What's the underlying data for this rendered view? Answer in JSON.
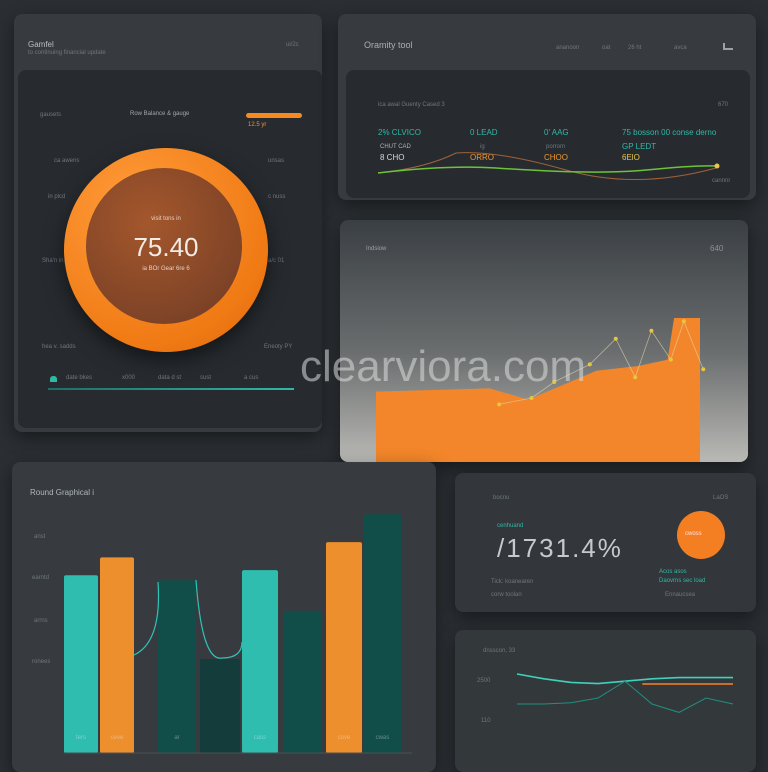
{
  "gauge_panel": {
    "title": "Gamfel",
    "subtitle": "to continuing financial update",
    "corner": "ui/2c",
    "header_left": "gausets",
    "header_mid": "Row Balance & gauge",
    "header_right": "12.5 yr",
    "side_left": [
      "ca awens",
      "in plcd",
      "Sha'n in atch",
      "hea v. sadds"
    ],
    "side_right": [
      "unsas",
      "c nuss",
      "a/c 01",
      "Eneoty PY"
    ],
    "gauge_value": "75.40",
    "gauge_label": "visit tons in",
    "gauge_sub": "ia BOr Gear 6re 6",
    "footer": [
      "date bkes",
      "x000",
      "data d st",
      "sust",
      "a cus"
    ],
    "accent": "#f68a1f"
  },
  "summary_panel": {
    "title": "Oramity tool",
    "tabs": [
      "ananoon",
      "oat",
      "26 ht",
      "avca"
    ],
    "caption": "ica awal Guenty Cased 3",
    "corner": "670",
    "stats": [
      {
        "top": "2% CLVICO",
        "label": "CHUT CAD",
        "value": "8 CHO"
      },
      {
        "top": "0 LEAD",
        "label": "ig",
        "value": "ORRO"
      },
      {
        "top": "0' AAG",
        "label": "porrom",
        "value": "CHOO"
      },
      {
        "top": "75 bosson 00 conse derno",
        "label": "GP LEDT",
        "value": "6ElO"
      }
    ],
    "footnote": "cannnr"
  },
  "area_panel": {
    "title": "Indsiow",
    "corner": "640"
  },
  "bar_panel": {
    "title": "Round Graphical i",
    "ticks": [
      "anst",
      "earntd",
      "arrns",
      "ronees"
    ],
    "bar_labels": [
      "ters",
      "ceve",
      "ar",
      "",
      "cass",
      "",
      "cove",
      "cwas"
    ]
  },
  "kpi_panel": {
    "title": "bocnu",
    "corner": "LaOS",
    "trend": "cenhuand",
    "value": "/1731.4%",
    "badge": "cwoss",
    "notes_left": [
      "Tick: koanearen",
      "corw toolan"
    ],
    "notes_right": [
      "Acos asos",
      "Daovrns sec load",
      "Ennaucsea"
    ]
  },
  "line_panel": {
    "title": "dnsscon, 33",
    "ticks": [
      "2500",
      "110"
    ]
  },
  "watermark": "clearviora.com",
  "chart_data": [
    {
      "type": "bar",
      "title": "Round Graphical i",
      "categories": [
        "1",
        "2",
        "3",
        "4",
        "5",
        "6",
        "7",
        "8"
      ],
      "values": [
        70,
        77,
        68,
        37,
        72,
        56,
        83,
        94
      ],
      "colors": [
        "#2ec4b6",
        "#f7932b",
        "#0f4f4a",
        "#123c3a",
        "#2ec4b6",
        "#0f4f4a",
        "#f7932b",
        "#0f4f4a"
      ]
    },
    {
      "type": "area",
      "title": "Indsiow",
      "area_values": [
        44,
        46,
        39,
        57,
        60,
        64,
        90,
        90
      ],
      "area_x": [
        0,
        35,
        47,
        68,
        81,
        90,
        92,
        100
      ],
      "line_x": [
        38,
        48,
        55,
        66,
        74,
        80,
        85,
        91,
        95,
        101
      ],
      "line_values": [
        36,
        40,
        50,
        61,
        77,
        53,
        82,
        64,
        88,
        58
      ]
    },
    {
      "type": "line",
      "series": [
        {
          "color": "#3fd1bd",
          "values": [
            80,
            76,
            73,
            72,
            74,
            76,
            77,
            77,
            77
          ]
        },
        {
          "color": "#1f8f83",
          "values": [
            55,
            55,
            56,
            60,
            74,
            55,
            48,
            60,
            55
          ]
        }
      ]
    }
  ]
}
